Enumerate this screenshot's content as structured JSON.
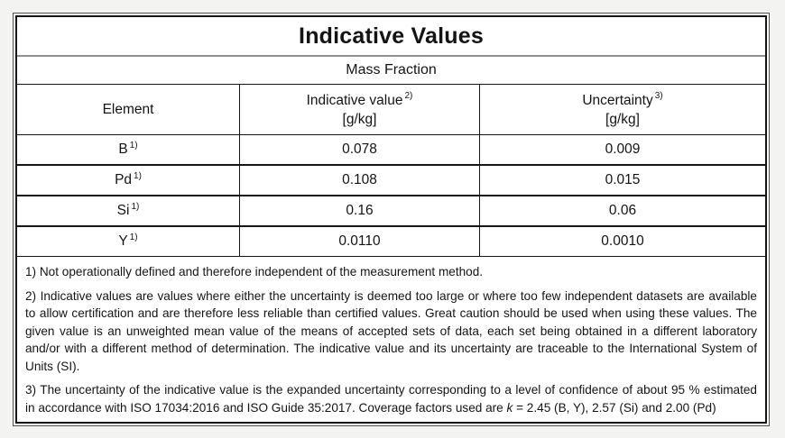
{
  "table": {
    "title": "Indicative Values",
    "subtitle": "Mass Fraction",
    "columns": [
      {
        "label": "Element",
        "sup": "",
        "unit": ""
      },
      {
        "label": "Indicative value",
        "sup": "2)",
        "unit": "[g/kg]"
      },
      {
        "label": "Uncertainty",
        "sup": "3)",
        "unit": "[g/kg]"
      }
    ],
    "rows": [
      {
        "element": "B",
        "element_sup": "1)",
        "indicative_value": "0.078",
        "uncertainty": "0.009"
      },
      {
        "element": "Pd",
        "element_sup": "1)",
        "indicative_value": "0.108",
        "uncertainty": "0.015"
      },
      {
        "element": "Si",
        "element_sup": "1)",
        "indicative_value": "0.16",
        "uncertainty": "0.06"
      },
      {
        "element": "Y",
        "element_sup": "1)",
        "indicative_value": "0.0110",
        "uncertainty": "0.0010"
      }
    ],
    "footnotes": {
      "note1": "1) Not operationally defined and therefore independent of the measurement method.",
      "note2": "2) Indicative values are values where either the uncertainty is deemed too large or where too few independent datasets are available to allow certification and are therefore less reliable than certified values. Great caution should be used when using these values. The given value is an unweighted mean value of the means of accepted sets of data, each set being obtained in a different laboratory and/or with a different method of determination. The indicative value and its uncertainty are traceable to the International System of Units (SI).",
      "note3_pre": "3) The uncertainty of the indicative value is the expanded uncertainty corresponding to a level of confidence of about 95 % estimated in accordance with ISO 17034:2016 and ISO Guide 35:2017. Coverage factors used are ",
      "note3_k": "k",
      "note3_post": " = 2.45 (B, Y), 2.57 (Si) and 2.00 (Pd)"
    },
    "colors": {
      "inner_border": "#161616",
      "outer_border": "#4f4f4f",
      "subtitle_divider": "#8f8f8f",
      "table_background": "#ffffff",
      "page_background": "#f3f3f1"
    }
  }
}
